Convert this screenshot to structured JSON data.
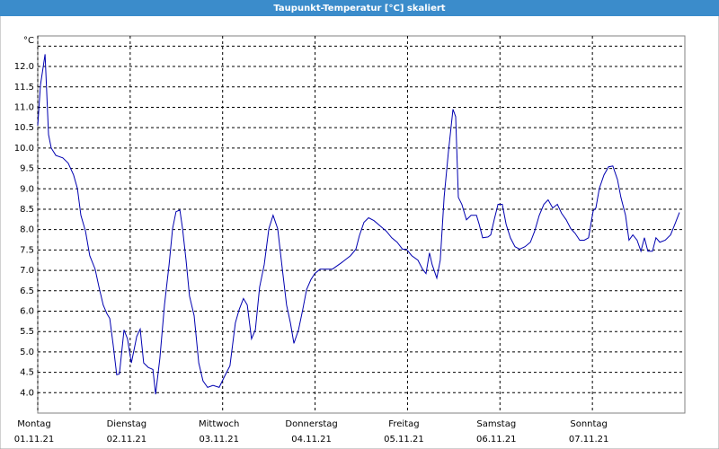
{
  "chart_data": {
    "type": "line",
    "title": "Taupunkt-Temperatur [°C] skaliert",
    "y_unit": "°C",
    "color": "#0000b0",
    "xlim": [
      0,
      168
    ],
    "ylim": [
      3.5,
      12.75
    ],
    "xticks": [
      {
        "value": 0,
        "label": "Montag"
      },
      {
        "value": 24,
        "label": "Dienstag"
      },
      {
        "value": 48,
        "label": "Mittwoch"
      },
      {
        "value": 72,
        "label": "Donnerstag"
      },
      {
        "value": 96,
        "label": "Freitag"
      },
      {
        "value": 120,
        "label": "Samstag"
      },
      {
        "value": 144,
        "label": "Sonntag"
      }
    ],
    "xtick_dates": [
      "01.11.21",
      "02.11.21",
      "03.11.21",
      "04.11.21",
      "05.11.21",
      "06.11.21",
      "07.11.21"
    ],
    "yticks": [
      {
        "value": 4,
        "label": "4.0"
      },
      4.5,
      {
        "value": 5,
        "label": "5.0"
      },
      5.5,
      {
        "value": 6,
        "label": "6.0"
      },
      6.5,
      {
        "value": 7,
        "label": "7.0"
      },
      7.5,
      {
        "value": 8,
        "label": "8.0"
      },
      8.5,
      {
        "value": 9,
        "label": "9.0"
      },
      9.5,
      {
        "value": 10,
        "label": "10.0"
      },
      10.5,
      {
        "value": 11,
        "label": "11.0"
      },
      11.5,
      {
        "value": 12,
        "label": "12.0"
      }
    ],
    "ygrid_extra": [
      12.5
    ],
    "grid": true,
    "x": [
      0,
      0.7,
      1.4,
      1.9,
      2.3,
      2.8,
      3.5,
      4.7,
      6.5,
      7.9,
      9.3,
      10.3,
      11.2,
      12.4,
      13.5,
      14.9,
      15.9,
      17.0,
      18.0,
      18.7,
      19.6,
      20.5,
      21.2,
      22.4,
      23.3,
      24.3,
      25.0,
      25.7,
      26.6,
      27.5,
      28.7,
      29.9,
      30.6,
      31.7,
      32.9,
      34.1,
      35.0,
      35.9,
      36.9,
      37.6,
      38.5,
      39.4,
      40.6,
      41.8,
      42.9,
      44.1,
      45.5,
      47.1,
      48.5,
      49.9,
      51.3,
      52.3,
      53.4,
      54.4,
      55.5,
      56.5,
      57.6,
      58.8,
      60.0,
      61.1,
      62.3,
      63.5,
      64.6,
      65.6,
      66.5,
      67.7,
      68.8,
      69.8,
      70.9,
      71.9,
      73.3,
      74.7,
      76.5,
      78.9,
      81.2,
      82.6,
      83.5,
      84.7,
      85.9,
      87.3,
      88.9,
      90.5,
      91.9,
      93.3,
      94.7,
      95.7,
      97.1,
      98.7,
      99.9,
      100.8,
      101.7,
      102.4,
      103.6,
      104.5,
      105.5,
      106.6,
      107.8,
      108.5,
      109.2,
      110.1,
      111.3,
      112.5,
      113.9,
      114.6,
      115.5,
      116.9,
      117.6,
      118.5,
      119.5,
      120.6,
      121.6,
      122.7,
      123.9,
      125.1,
      126.5,
      127.9,
      129.0,
      130.2,
      131.4,
      132.5,
      133.7,
      134.9,
      136.0,
      137.2,
      138.4,
      139.5,
      140.7,
      141.9,
      143.0,
      144.2,
      144.9,
      145.8,
      147.0,
      148.2,
      149.3,
      150.5,
      151.4,
      152.6,
      153.5,
      154.5,
      155.6,
      156.6,
      157.5,
      158.4,
      159.6,
      160.5,
      161.5,
      162.9,
      164.3,
      165.4,
      166.6
    ],
    "values": [
      10.55,
      11.54,
      11.98,
      12.3,
      11.43,
      10.33,
      10.0,
      9.82,
      9.76,
      9.63,
      9.34,
      9.01,
      8.35,
      7.96,
      7.36,
      7.03,
      6.59,
      6.15,
      5.93,
      5.82,
      5.16,
      4.44,
      4.46,
      5.54,
      5.32,
      4.73,
      5.05,
      5.38,
      5.56,
      4.73,
      4.62,
      4.57,
      3.96,
      4.84,
      6.15,
      7.14,
      8.02,
      8.44,
      8.48,
      8.02,
      7.25,
      6.37,
      5.89,
      4.73,
      4.29,
      4.13,
      4.18,
      4.13,
      4.4,
      4.66,
      5.71,
      6.04,
      6.31,
      6.15,
      5.32,
      5.54,
      6.59,
      7.14,
      8.02,
      8.35,
      8.02,
      7.03,
      6.15,
      5.71,
      5.21,
      5.54,
      6.04,
      6.53,
      6.77,
      6.92,
      7.03,
      7.03,
      7.03,
      7.19,
      7.36,
      7.52,
      7.85,
      8.18,
      8.29,
      8.22,
      8.09,
      7.96,
      7.8,
      7.69,
      7.52,
      7.52,
      7.36,
      7.25,
      7.03,
      6.92,
      7.43,
      7.14,
      6.81,
      7.25,
      8.79,
      9.89,
      10.95,
      10.77,
      8.79,
      8.62,
      8.24,
      8.35,
      8.35,
      8.13,
      7.8,
      7.82,
      7.87,
      8.24,
      8.62,
      8.62,
      8.13,
      7.8,
      7.58,
      7.52,
      7.58,
      7.69,
      7.96,
      8.35,
      8.62,
      8.73,
      8.53,
      8.62,
      8.4,
      8.24,
      8.02,
      7.91,
      7.74,
      7.74,
      7.8,
      8.46,
      8.53,
      9.01,
      9.34,
      9.54,
      9.56,
      9.23,
      8.79,
      8.35,
      7.74,
      7.87,
      7.74,
      7.47,
      7.8,
      7.47,
      7.47,
      7.8,
      7.69,
      7.74,
      7.87,
      8.13,
      8.42
    ]
  }
}
